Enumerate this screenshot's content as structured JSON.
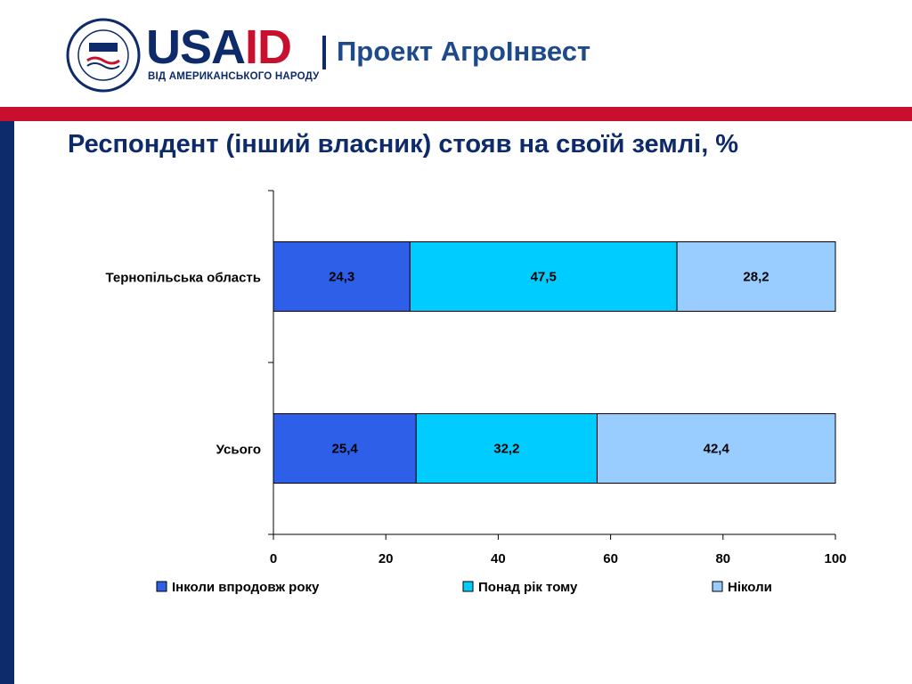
{
  "header": {
    "logo_text": "USAID",
    "logo_subtitle": "ВІД АМЕРИКАНСЬКОГО НАРОДУ",
    "logo_badge": "USAID",
    "seal_text": "UNITED STATES AGENCY · INTERNATIONAL DEVELOPMENT",
    "project_name": "Проект АгроІнвест"
  },
  "colors": {
    "brand_blue": "#0d2a6b",
    "brand_red": "#c8102e",
    "series": [
      "#2e5fe8",
      "#00ccff",
      "#99ccff"
    ]
  },
  "slide": {
    "title": "Респондент (інший власник) стояв на своїй землі, %"
  },
  "chart_data": {
    "type": "bar",
    "orientation": "horizontal",
    "stacked": true,
    "categories": [
      "Тернопільська область",
      "Усього"
    ],
    "series": [
      {
        "name": "Інколи впродовж року",
        "values": [
          24.3,
          25.4
        ],
        "labels": [
          "24,3",
          "25,4"
        ]
      },
      {
        "name": "Понад рік тому",
        "values": [
          47.5,
          32.2
        ],
        "labels": [
          "47,5",
          "32,2"
        ]
      },
      {
        "name": "Ніколи",
        "values": [
          28.2,
          42.4
        ],
        "labels": [
          "28,2",
          "42,4"
        ]
      }
    ],
    "xlim": [
      0,
      100
    ],
    "xticks": [
      "0",
      "20",
      "40",
      "60",
      "80",
      "100"
    ],
    "grid": false,
    "legend_position": "bottom"
  }
}
